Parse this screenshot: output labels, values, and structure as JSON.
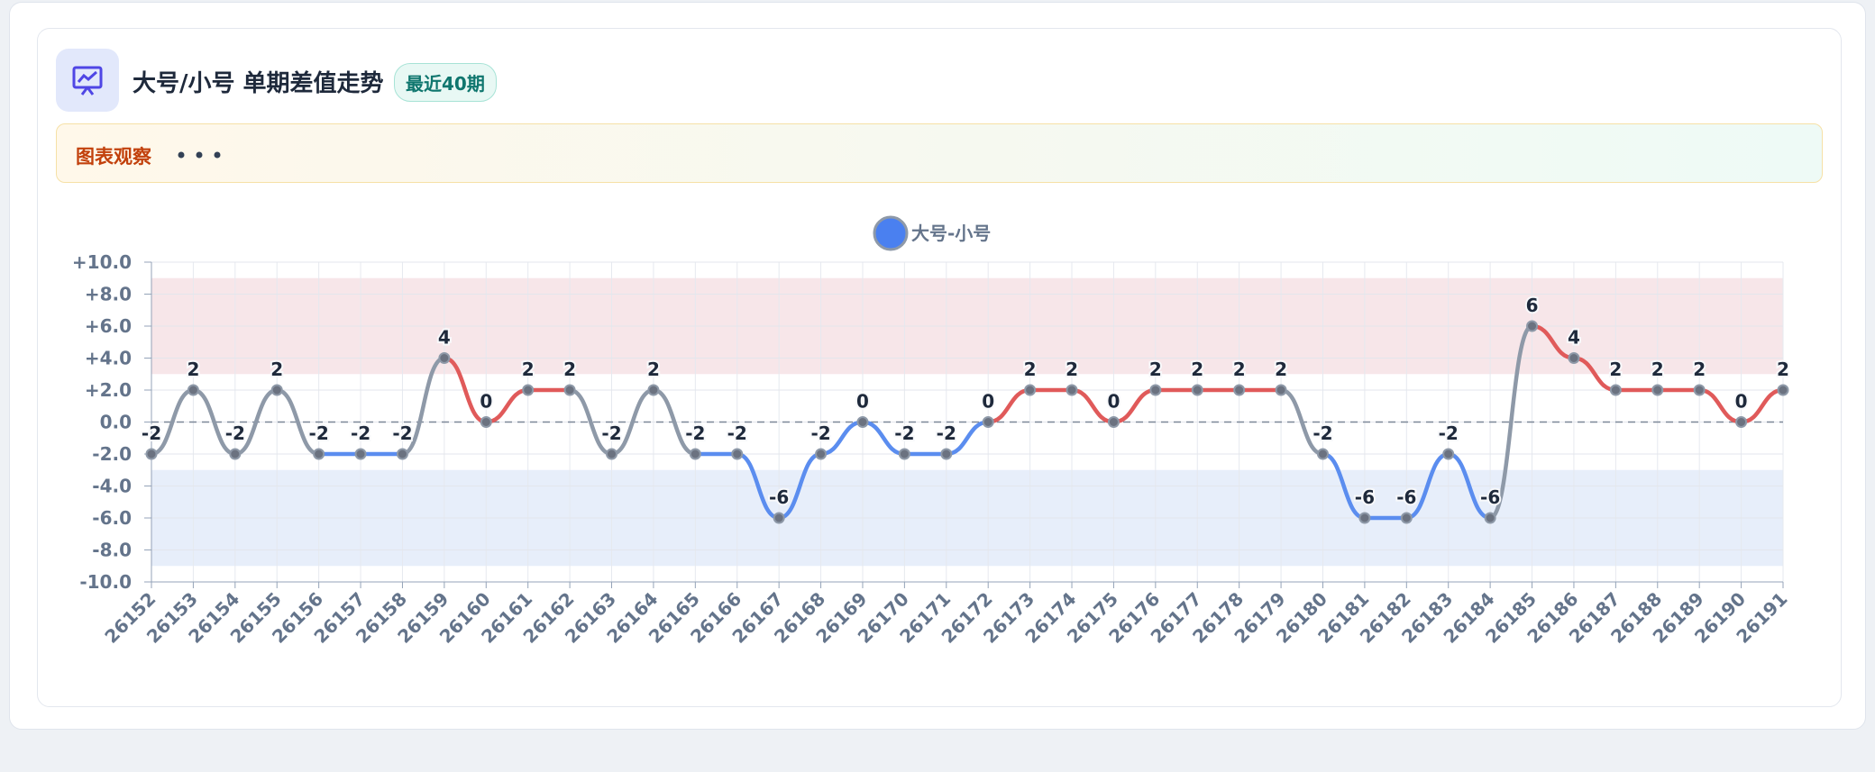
{
  "header": {
    "title": "大号/小号 单期差值走势",
    "badge": "最近40期"
  },
  "observation": {
    "label": "图表观察"
  },
  "chart_data": {
    "type": "line",
    "categories": [
      "26152",
      "26153",
      "26154",
      "26155",
      "26156",
      "26157",
      "26158",
      "26159",
      "26160",
      "26161",
      "26162",
      "26163",
      "26164",
      "26165",
      "26166",
      "26167",
      "26168",
      "26169",
      "26170",
      "26171",
      "26172",
      "26173",
      "26174",
      "26175",
      "26176",
      "26177",
      "26178",
      "26179",
      "26180",
      "26181",
      "26182",
      "26183",
      "26184",
      "26185",
      "26186",
      "26187",
      "26188",
      "26189",
      "26190",
      "26191"
    ],
    "series": [
      {
        "name": "大号-小号",
        "color": "#4a80f0",
        "values": [
          -2,
          2,
          -2,
          2,
          -2,
          -2,
          -2,
          4,
          0,
          2,
          2,
          -2,
          2,
          -2,
          -2,
          -6,
          -2,
          0,
          -2,
          -2,
          0,
          2,
          2,
          0,
          2,
          2,
          2,
          2,
          -2,
          -6,
          -6,
          -2,
          -6,
          6,
          4,
          2,
          2,
          2,
          0,
          2
        ]
      }
    ],
    "segment_colors": {
      "positive": "#e05a5a",
      "negative": "#5b8def",
      "mixed": "#8e99a8"
    },
    "bands": [
      {
        "from": 3,
        "to": 9,
        "color": "#f7e6e9"
      },
      {
        "from": -3,
        "to": -9,
        "color": "#e7eefa"
      }
    ],
    "reference_line": 0,
    "ylim": [
      -10,
      10
    ],
    "yticks": [
      {
        "value": 10,
        "label": "+10.0"
      },
      {
        "value": 8,
        "label": "+8.0"
      },
      {
        "value": 6,
        "label": "+6.0"
      },
      {
        "value": 4,
        "label": "+4.0"
      },
      {
        "value": 2,
        "label": "+2.0"
      },
      {
        "value": 0,
        "label": "0.0"
      },
      {
        "value": -2,
        "label": "-2.0"
      },
      {
        "value": -4,
        "label": "-4.0"
      },
      {
        "value": -6,
        "label": "-6.0"
      },
      {
        "value": -8,
        "label": "-8.0"
      },
      {
        "value": -10,
        "label": "-10.0"
      }
    ],
    "grid": true,
    "legend": "top"
  }
}
